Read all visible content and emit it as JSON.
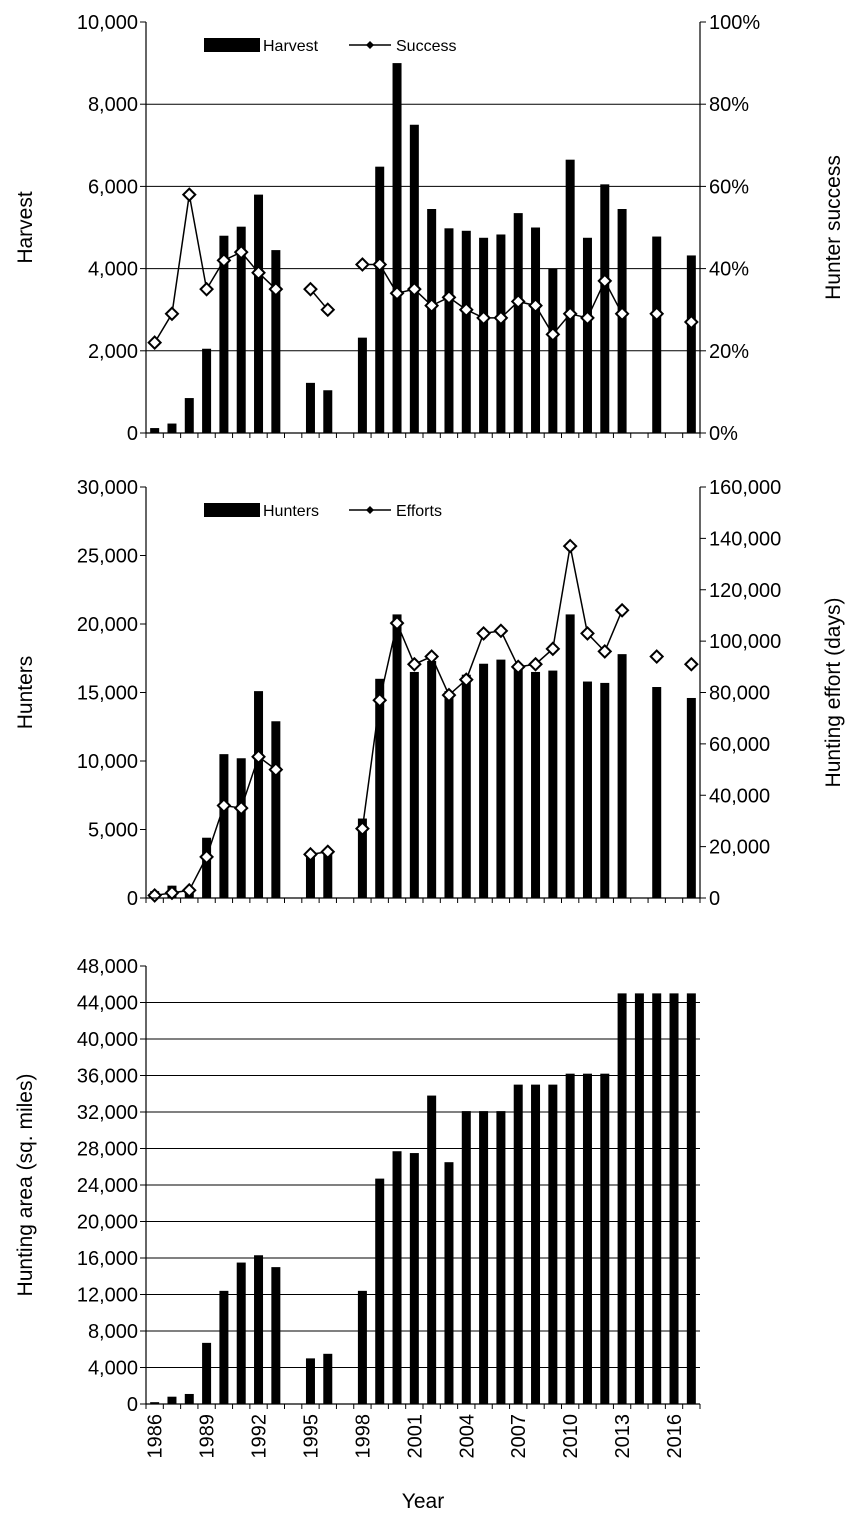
{
  "chart_data": [
    {
      "type": "bar",
      "x": [
        1986,
        1987,
        1988,
        1989,
        1990,
        1991,
        1992,
        1993,
        1994,
        1995,
        1996,
        1997,
        1998,
        1999,
        2000,
        2001,
        2002,
        2003,
        2004,
        2005,
        2006,
        2007,
        2008,
        2009,
        2010,
        2011,
        2012,
        2013,
        2014,
        2015,
        2016,
        2017
      ],
      "ylabel": "Harvest",
      "y2label": "Hunter success",
      "ylim": [
        0,
        10000
      ],
      "y2lim": [
        0,
        100
      ],
      "yticks": [
        "0",
        "2,000",
        "4,000",
        "6,000",
        "8,000",
        "10,000"
      ],
      "y2ticks": [
        "0%",
        "20%",
        "40%",
        "60%",
        "80%",
        "100%"
      ],
      "grid": true,
      "legend": {
        "position": "top-left",
        "entries": [
          "Harvest",
          "Success"
        ]
      },
      "series": [
        {
          "name": "Harvest",
          "kind": "bar",
          "axis": "left",
          "values": [
            120,
            230,
            850,
            2050,
            4800,
            5020,
            5800,
            4450,
            null,
            1220,
            1040,
            null,
            2320,
            6480,
            9000,
            7500,
            5450,
            4980,
            4920,
            4750,
            4830,
            5350,
            5000,
            4000,
            6650,
            4750,
            6050,
            5450,
            null,
            4780,
            null,
            4320
          ]
        },
        {
          "name": "Success",
          "kind": "line",
          "axis": "right",
          "values": [
            22,
            29,
            58,
            35,
            42,
            44,
            39,
            35,
            null,
            35,
            30,
            null,
            41,
            41,
            34,
            35,
            31,
            33,
            30,
            28,
            28,
            32,
            31,
            24,
            29,
            28,
            37,
            29,
            null,
            29,
            null,
            27
          ]
        }
      ]
    },
    {
      "type": "bar",
      "x": [
        1986,
        1987,
        1988,
        1989,
        1990,
        1991,
        1992,
        1993,
        1994,
        1995,
        1996,
        1997,
        1998,
        1999,
        2000,
        2001,
        2002,
        2003,
        2004,
        2005,
        2006,
        2007,
        2008,
        2009,
        2010,
        2011,
        2012,
        2013,
        2014,
        2015,
        2016,
        2017
      ],
      "ylabel": "Hunters",
      "y2label": "Hunting effort (days)",
      "ylim": [
        0,
        30000
      ],
      "y2lim": [
        0,
        160000
      ],
      "yticks": [
        "0",
        "5,000",
        "10,000",
        "15,000",
        "20,000",
        "25,000",
        "30,000"
      ],
      "y2ticks": [
        "0",
        "20,000",
        "40,000",
        "60,000",
        "80,000",
        "100,000",
        "120,000",
        "140,000",
        "160,000"
      ],
      "grid": false,
      "legend": {
        "position": "top-left",
        "entries": [
          "Hunters",
          "Efforts"
        ]
      },
      "series": [
        {
          "name": "Hunters",
          "kind": "bar",
          "axis": "left",
          "values": [
            500,
            900,
            400,
            4400,
            10500,
            10200,
            15100,
            12900,
            null,
            3300,
            3400,
            null,
            5800,
            16000,
            20700,
            16500,
            17300,
            15100,
            16300,
            17100,
            17400,
            17000,
            16500,
            16600,
            20700,
            15800,
            15700,
            17800,
            null,
            15400,
            null,
            14600
          ]
        },
        {
          "name": "Efforts",
          "kind": "line",
          "axis": "right",
          "values": [
            1000,
            2000,
            3000,
            16000,
            36000,
            35000,
            55000,
            50000,
            null,
            17000,
            18000,
            null,
            27000,
            77000,
            107000,
            91000,
            94000,
            79000,
            85000,
            103000,
            104000,
            90000,
            91000,
            97000,
            137000,
            103000,
            96000,
            112000,
            null,
            94000,
            null,
            91000
          ]
        }
      ]
    },
    {
      "type": "bar",
      "x": [
        1986,
        1987,
        1988,
        1989,
        1990,
        1991,
        1992,
        1993,
        1994,
        1995,
        1996,
        1997,
        1998,
        1999,
        2000,
        2001,
        2002,
        2003,
        2004,
        2005,
        2006,
        2007,
        2008,
        2009,
        2010,
        2011,
        2012,
        2013,
        2014,
        2015,
        2016,
        2017
      ],
      "xticks": [
        "1986",
        "1989",
        "1992",
        "1995",
        "1998",
        "2001",
        "2004",
        "2007",
        "2010",
        "2013",
        "2016"
      ],
      "xlabel": "Year",
      "ylabel": "Hunting  area (sq. miles)",
      "ylim": [
        0,
        48000
      ],
      "yticks": [
        "0",
        "4,000",
        "8,000",
        "12,000",
        "16,000",
        "20,000",
        "24,000",
        "28,000",
        "32,000",
        "36,000",
        "40,000",
        "44,000",
        "48,000"
      ],
      "grid": true,
      "series": [
        {
          "name": "",
          "kind": "bar",
          "axis": "left",
          "values": [
            200,
            800,
            1100,
            6700,
            12400,
            15500,
            16300,
            15000,
            null,
            5000,
            5500,
            null,
            12400,
            24700,
            27700,
            27500,
            33800,
            26500,
            32100,
            32100,
            32100,
            35000,
            35000,
            35000,
            36200,
            36200,
            36200,
            45000,
            45000,
            45000,
            45000,
            45000
          ]
        }
      ]
    }
  ]
}
